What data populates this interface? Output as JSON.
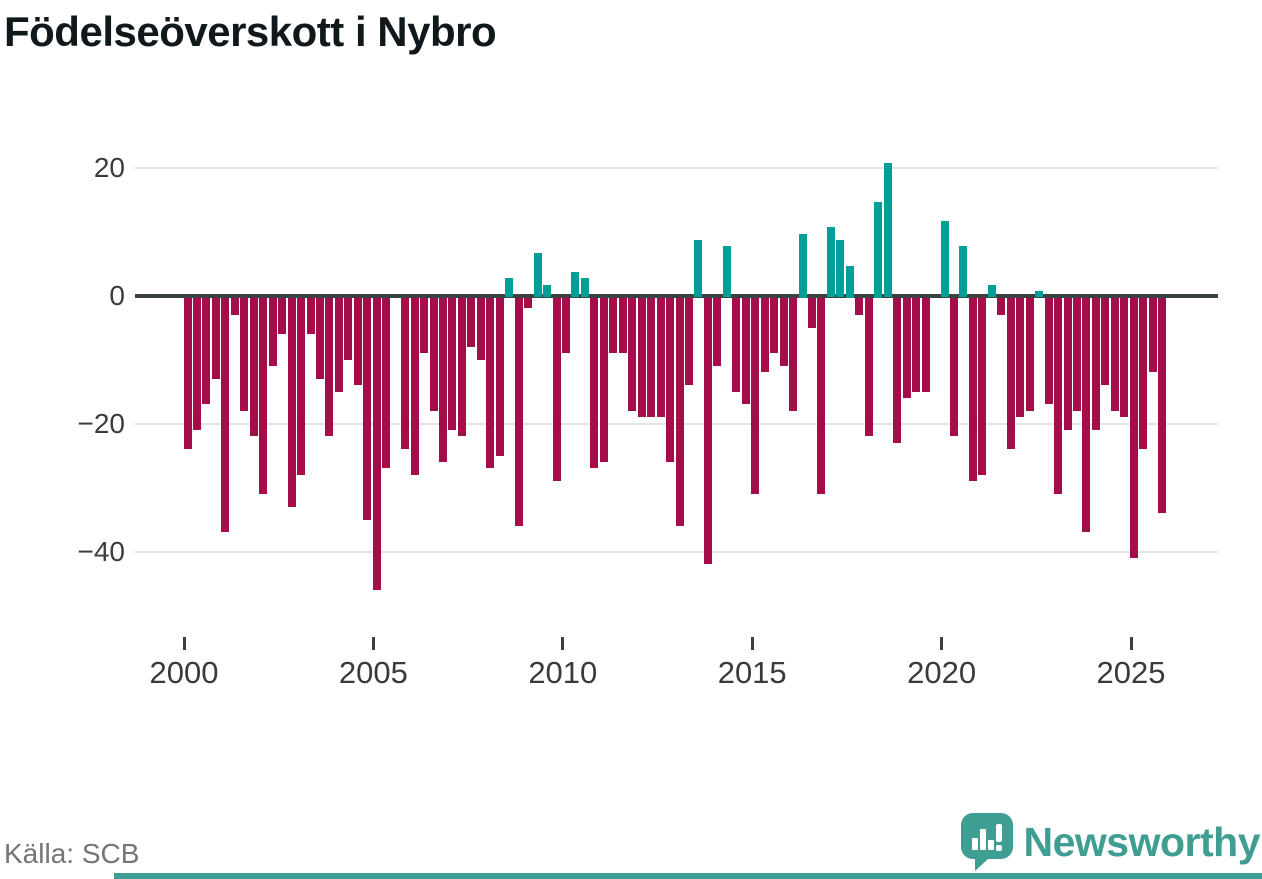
{
  "title": "Födelseöverskott i Nybro",
  "source": {
    "label": "Källa: SCB"
  },
  "brand": {
    "name": "Newsworthy"
  },
  "colors": {
    "positive": "#00a099",
    "negative": "#a40d4a",
    "zero_line": "#3b4242",
    "grid": "#e4e4e4",
    "brand_teal": "#3e9e92",
    "title_text": "#10181c",
    "axis_text": "#3a3a3a",
    "source_text": "#757575"
  },
  "y_axis": {
    "ticks": [
      {
        "label": "20",
        "value": 20
      },
      {
        "label": "0",
        "value": 0
      },
      {
        "label": "−20",
        "value": -20
      },
      {
        "label": "−40",
        "value": -40
      }
    ]
  },
  "x_axis": {
    "ticks": [
      "2000",
      "2005",
      "2010",
      "2015",
      "2020",
      "2025"
    ]
  },
  "chart_data": {
    "type": "bar",
    "title": "Födelseöverskott i Nybro",
    "xlabel": "",
    "ylabel": "",
    "ylim": [
      -46,
      22
    ],
    "grid": "horizontal",
    "legend": "none",
    "frequency": "quarterly",
    "start_period": "2000Q1",
    "end_period": "2025Q4",
    "positive_color_meaning": "birth surplus (teal)",
    "negative_color_meaning": "birth deficit (dark red)",
    "values": [
      -24,
      -21,
      -17,
      -13,
      -37,
      -3,
      -18,
      -22,
      -31,
      -11,
      -6,
      -33,
      -28,
      -6,
      -13,
      -22,
      -15,
      -10,
      -14,
      -35,
      -46,
      -27,
      0,
      -24,
      -28,
      -9,
      -18,
      -26,
      -21,
      -22,
      -8,
      -10,
      -27,
      -25,
      3,
      -36,
      -2,
      7,
      2,
      -29,
      -9,
      4,
      3,
      -27,
      -26,
      -9,
      -9,
      -18,
      -19,
      -19,
      -19,
      -26,
      -36,
      -14,
      9,
      -42,
      -11,
      8,
      -15,
      -17,
      -31,
      -12,
      -9,
      -11,
      -18,
      10,
      -5,
      -31,
      11,
      9,
      5,
      -3,
      -22,
      15,
      21,
      -23,
      -16,
      -15,
      -15,
      0,
      12,
      -22,
      8,
      -29,
      -28,
      2,
      -3,
      -24,
      -19,
      -18,
      1,
      -17,
      -31,
      -21,
      -18,
      -37,
      -21,
      -14,
      -18,
      -19,
      -41,
      -24,
      -12,
      -34
    ]
  }
}
